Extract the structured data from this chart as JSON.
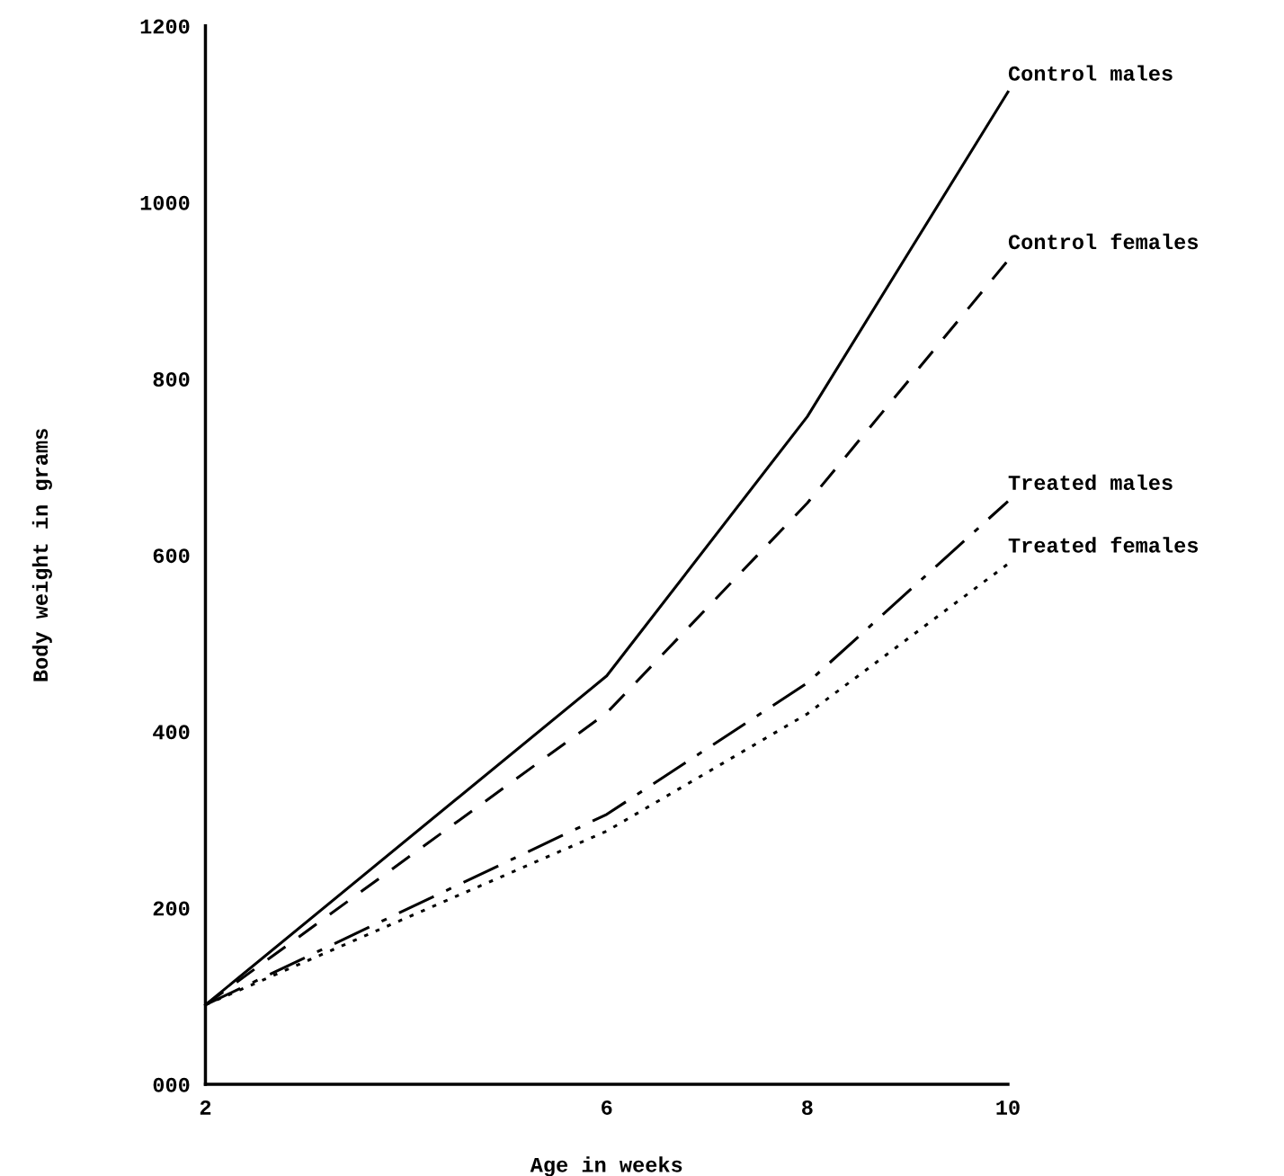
{
  "chart_data": {
    "type": "line",
    "xlabel": "Age in weeks",
    "ylabel": "Body weight in grams",
    "x": [
      2,
      6,
      8,
      10
    ],
    "xlim": [
      2,
      10
    ],
    "ylim": [
      0,
      1200
    ],
    "xticks": [
      2,
      6,
      8,
      10
    ],
    "yticks": [
      {
        "value": 0,
        "label": "000"
      },
      200,
      400,
      600,
      800,
      1000,
      1200
    ],
    "grid": false,
    "legend": false,
    "marker": "none",
    "series": [
      {
        "name": "Control males",
        "color": "#000000",
        "line_style": "solid",
        "values": [
          90,
          463,
          757,
          1125
        ]
      },
      {
        "name": "Control females",
        "color": "#000000",
        "line_style": "dashed",
        "values": [
          90,
          421,
          659,
          934
        ]
      },
      {
        "name": "Treated males",
        "color": "#000000",
        "line_style": "dashdot",
        "values": [
          90,
          306,
          455,
          661
        ]
      },
      {
        "name": "Treated females",
        "color": "#000000",
        "line_style": "dotted",
        "values": [
          90,
          287,
          420,
          590
        ]
      }
    ]
  }
}
